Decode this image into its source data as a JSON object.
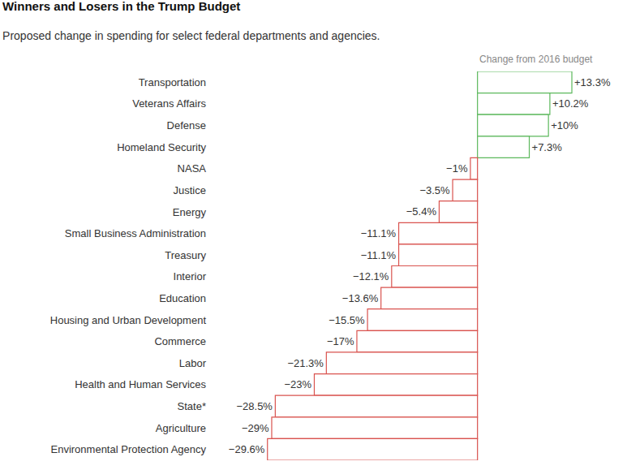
{
  "chart_data": {
    "type": "bar",
    "title": "Winners and Losers in the Trump Budget",
    "subtitle": "Proposed change in spending for select federal departments and agencies.",
    "annotations": [
      "Change from 2016 budget"
    ],
    "orientation": "horizontal",
    "categories": [
      "Transportation",
      "Veterans Affairs",
      "Defense",
      "Homeland Security",
      "NASA",
      "Justice",
      "Energy",
      "Small Business Administration",
      "Treasury",
      "Interior",
      "Education",
      "Housing and Urban Development",
      "Commerce",
      "Labor",
      "Health and Human Services",
      "State*",
      "Agriculture",
      "Environmental Protection Agency"
    ],
    "values": [
      13.3,
      10.2,
      10,
      7.3,
      -1,
      -3.5,
      -5.4,
      -11.1,
      -11.1,
      -12.1,
      -13.6,
      -15.5,
      -17,
      -21.3,
      -23,
      -28.5,
      -29,
      -29.6
    ],
    "value_labels": [
      "+13.3%",
      "+10.2%",
      "+10%",
      "+7.3%",
      "−1%",
      "−3.5%",
      "−5.4%",
      "−11.1%",
      "−11.1%",
      "−12.1%",
      "−13.6%",
      "−15.5%",
      "−17%",
      "−21.3%",
      "−23%",
      "−28.5%",
      "−29%",
      "−29.6%"
    ],
    "colors": [
      "#5cb85c",
      "#5cb85c",
      "#5cb85c",
      "#5cb85c",
      "#d9534f",
      "#d9534f",
      "#d9534f",
      "#d9534f",
      "#d9534f",
      "#d9534f",
      "#d9534f",
      "#d9534f",
      "#d9534f",
      "#d9534f",
      "#d9534f",
      "#d9534f",
      "#d9534f",
      "#d9534f"
    ],
    "data_labels": true,
    "xlim": [
      -37,
      20.5
    ],
    "grid": false,
    "tick_labels": "y"
  }
}
